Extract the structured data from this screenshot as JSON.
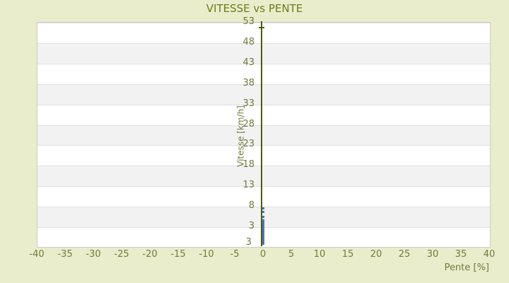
{
  "chart_data": {
    "type": "scatter",
    "title": "VITESSE vs PENTE",
    "xlabel": "Pente [%]",
    "ylabel": "Vitesse [km/h]",
    "xlim": [
      -40,
      40
    ],
    "ylim": [
      -1.84,
      53
    ],
    "x_ticks": [
      -40,
      -35,
      -30,
      -25,
      -20,
      -15,
      -10,
      -5,
      0,
      5,
      10,
      15,
      20,
      25,
      30,
      35,
      40
    ],
    "y_ticks": [
      53,
      48,
      43,
      38,
      33,
      28,
      23,
      18,
      13,
      8,
      3
    ],
    "y_axis_min_label": "3",
    "grid": "horizontal-gridlines-with-alternating-bands",
    "legend": "none",
    "series": [
      {
        "name": "vitesse-vs-pente-points",
        "marker": "small-square",
        "color": "#4878ab",
        "points": [
          [
            0.1,
            7.5
          ],
          [
            0.1,
            6.5
          ],
          [
            0.1,
            5.4
          ],
          [
            0.1,
            4.4
          ],
          [
            0.1,
            3.9
          ],
          [
            0.1,
            3.6
          ],
          [
            0.1,
            3.3
          ],
          [
            0.1,
            3.0
          ],
          [
            0.1,
            2.7
          ],
          [
            0.1,
            2.4
          ],
          [
            0.1,
            2.1
          ],
          [
            0.1,
            1.8
          ],
          [
            0.1,
            1.5
          ],
          [
            0.1,
            1.2
          ],
          [
            0.1,
            0.9
          ],
          [
            0.1,
            0.6
          ],
          [
            0.1,
            0.3
          ],
          [
            0.1,
            0.0
          ],
          [
            0.1,
            -0.3
          ],
          [
            0.1,
            -0.6
          ],
          [
            0.1,
            -0.9
          ],
          [
            0.1,
            -1.2
          ]
        ]
      }
    ],
    "colors": {
      "page_background": "#e9edcb",
      "plot_background": "#ffffff",
      "band": "#f2f2f2",
      "gridline": "#e0e0e0",
      "plot_border": "#cbcbcb",
      "title_text": "#6d7b1e",
      "tick_text": "#72793c",
      "axis_line": "#4d5a14",
      "marker": "#4878ab"
    }
  }
}
